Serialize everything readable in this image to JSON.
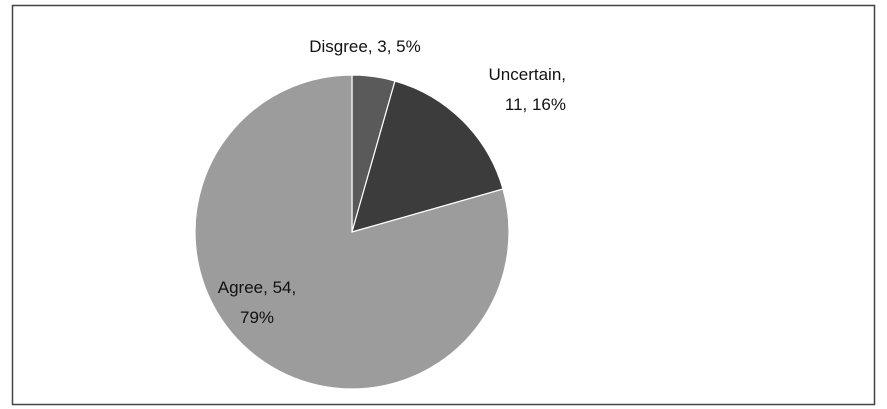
{
  "chart_data": {
    "type": "pie",
    "values": [
      3,
      11,
      54
    ],
    "value_labels": [
      "Disgree, 3, 5%",
      "Uncertain, 11, 16%",
      "Agree, 54, 79%"
    ],
    "colors": [
      "#5a5a5a",
      "#3c3c3c",
      "#9c9c9c"
    ]
  }
}
